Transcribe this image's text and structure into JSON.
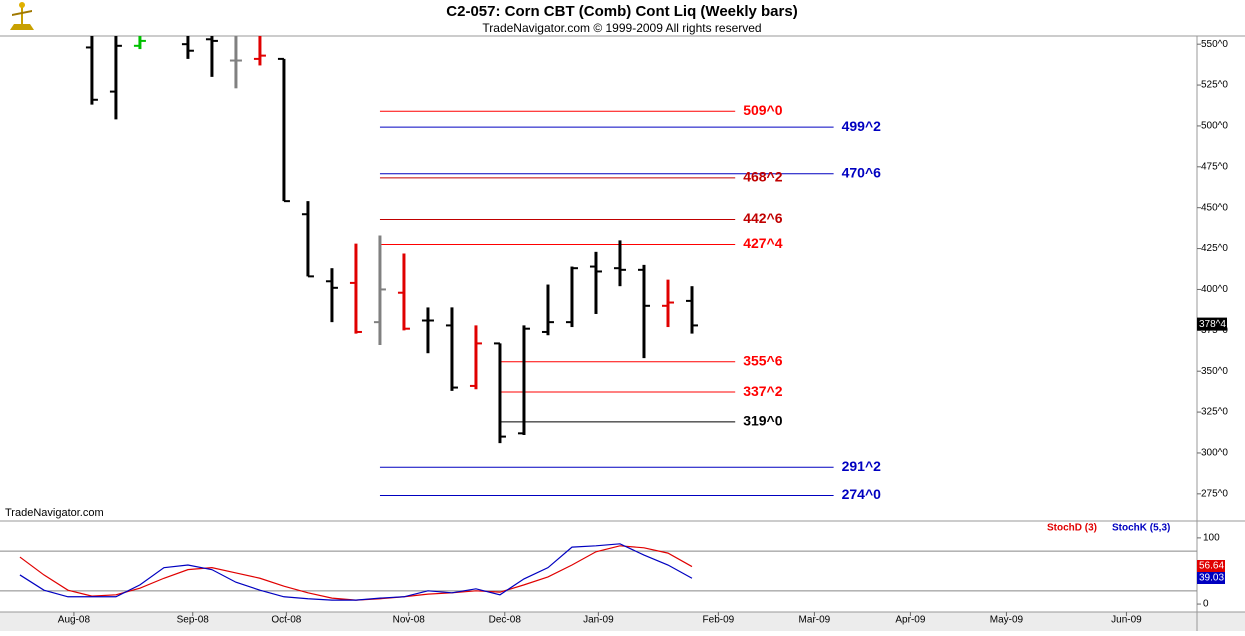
{
  "chart_data": [
    {
      "type": "ohlc",
      "title": "C2-057:  Corn CBT (Comb) Cont Liq  (Weekly bars)",
      "subtitle": "TradeNavigator.com © 1999-2009 All rights reserved",
      "watermark": "TradeNavigator.com",
      "x": [
        0,
        1,
        2,
        4,
        5,
        6,
        7,
        8,
        9,
        10,
        11,
        12,
        13,
        14,
        15,
        16,
        17,
        18,
        19,
        20,
        21,
        22,
        23,
        24,
        25
      ],
      "open": [
        548,
        521,
        549,
        550,
        553,
        540,
        541,
        541,
        446,
        405,
        404,
        380,
        398,
        381,
        378,
        341,
        367,
        312,
        374,
        380,
        414,
        413,
        412,
        390,
        393
      ],
      "high": [
        555,
        555,
        555,
        555,
        555,
        555,
        555,
        541,
        454,
        413,
        428,
        433,
        422,
        389,
        389,
        378,
        367,
        378,
        403,
        414,
        423,
        430,
        415,
        406,
        402
      ],
      "low": [
        513,
        504,
        547,
        541,
        530,
        523,
        537,
        454,
        408,
        380,
        373,
        366,
        375,
        361,
        338,
        339,
        306,
        311,
        372,
        377,
        385,
        402,
        358,
        377,
        373
      ],
      "close": [
        516,
        549,
        552,
        546,
        552,
        540,
        543,
        454,
        408,
        401,
        374,
        400,
        376,
        381,
        340,
        367,
        310,
        376,
        380,
        413,
        411,
        412,
        390,
        392,
        378
      ],
      "colors": [
        "#000000",
        "#000000",
        "#00c000",
        "#000000",
        "#000000",
        "#808080",
        "#e00000",
        "#000000",
        "#000000",
        "#000000",
        "#e00000",
        "#808080",
        "#e00000",
        "#000000",
        "#000000",
        "#e00000",
        "#000000",
        "#000000",
        "#000000",
        "#000000",
        "#000000",
        "#000000",
        "#000000",
        "#e00000",
        "#000000"
      ],
      "xlim": [
        -3.83,
        46.04
      ],
      "ylim": [
        259,
        555
      ],
      "yticks": [
        {
          "value": 550,
          "label": "550^0"
        },
        {
          "value": 525,
          "label": "525^0"
        },
        {
          "value": 500,
          "label": "500^0"
        },
        {
          "value": 475,
          "label": "475^0"
        },
        {
          "value": 450,
          "label": "450^0"
        },
        {
          "value": 425,
          "label": "425^0"
        },
        {
          "value": 400,
          "label": "400^0"
        },
        {
          "value": 375,
          "label": "375^0"
        },
        {
          "value": 350,
          "label": "350^0"
        },
        {
          "value": 325,
          "label": "325^0"
        },
        {
          "value": 300,
          "label": "300^0"
        },
        {
          "value": 275,
          "label": "275^0"
        }
      ],
      "last": {
        "value": 378.5,
        "label": "378^4"
      },
      "levels": [
        {
          "value": 509,
          "label": "509^0",
          "color": "#ff0000",
          "x": [
            12,
            26.8
          ]
        },
        {
          "value": 499.25,
          "label": "499^2",
          "color": "#0000c0",
          "x": [
            12,
            30.9
          ]
        },
        {
          "value": 470.75,
          "label": "470^6",
          "color": "#0000c0",
          "x": [
            12,
            30.9
          ]
        },
        {
          "value": 468.25,
          "label": "468^2",
          "color": "#c00000",
          "x": [
            12,
            26.8
          ]
        },
        {
          "value": 442.75,
          "label": "442^6",
          "color": "#c00000",
          "x": [
            12,
            26.8
          ]
        },
        {
          "value": 427.5,
          "label": "427^4",
          "color": "#ff0000",
          "x": [
            12,
            26.8
          ]
        },
        {
          "value": 355.75,
          "label": "355^6",
          "color": "#ff0000",
          "x": [
            17,
            26.8
          ]
        },
        {
          "value": 337.25,
          "label": "337^2",
          "color": "#ff0000",
          "x": [
            17,
            26.8
          ]
        },
        {
          "value": 319,
          "label": "319^0",
          "color": "#000000",
          "x": [
            17,
            26.8
          ]
        },
        {
          "value": 291.25,
          "label": "291^2",
          "color": "#0000c0",
          "x": [
            12,
            30.9
          ]
        },
        {
          "value": 274,
          "label": "274^0",
          "color": "#0000c0",
          "x": [
            12,
            30.9
          ]
        }
      ]
    },
    {
      "type": "line",
      "x": [
        -3,
        -2,
        -1,
        0,
        1,
        2,
        3,
        4,
        5,
        6,
        7,
        8,
        9,
        10,
        11,
        12,
        13,
        14,
        15,
        16,
        17,
        18,
        19,
        20,
        21,
        22,
        23,
        24,
        25
      ],
      "series": [
        {
          "name": "StochD (3)",
          "color": "#e00000",
          "values": [
            71,
            44,
            21,
            12,
            14,
            24,
            39,
            52,
            55,
            47,
            39,
            27,
            17,
            9,
            6,
            8,
            11,
            15,
            17,
            20,
            18,
            29,
            41,
            59,
            79,
            88,
            85,
            77,
            56.64
          ]
        },
        {
          "name": "StochK (5,3)",
          "color": "#0000c0",
          "values": [
            44,
            21,
            11,
            11,
            11,
            29,
            55,
            59,
            52,
            33,
            21,
            11,
            8,
            6,
            6,
            9,
            11,
            20,
            17,
            23,
            14,
            38,
            55,
            86,
            88,
            91,
            74,
            59,
            39.03
          ]
        }
      ],
      "xlim": [
        -3.83,
        46.04
      ],
      "ylim": [
        -12,
        124
      ],
      "yticks": [
        0,
        100
      ],
      "levels": [
        20,
        80
      ],
      "xticks": [
        {
          "value": -0.75,
          "label": "Aug-08"
        },
        {
          "value": 4.2,
          "label": "Sep-08"
        },
        {
          "value": 8.1,
          "label": "Oct-08"
        },
        {
          "value": 13.2,
          "label": "Nov-08"
        },
        {
          "value": 17.2,
          "label": "Dec-08"
        },
        {
          "value": 21.1,
          "label": "Jan-09"
        },
        {
          "value": 26.1,
          "label": "Feb-09"
        },
        {
          "value": 30.1,
          "label": "Mar-09"
        },
        {
          "value": 34.1,
          "label": "Apr-09"
        },
        {
          "value": 38.1,
          "label": "May-09"
        },
        {
          "value": 43.1,
          "label": "Jun-09"
        }
      ]
    }
  ]
}
